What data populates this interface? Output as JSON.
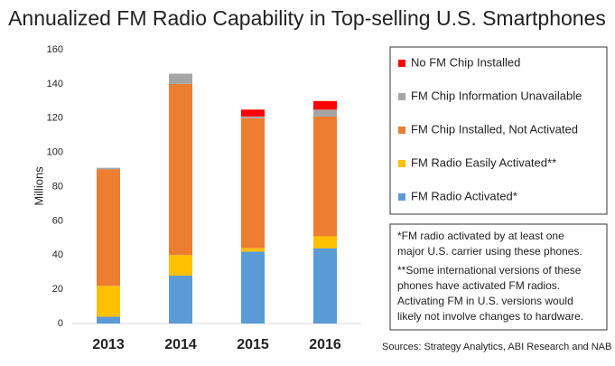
{
  "chart_data": {
    "type": "stacked_bar",
    "title": "Annualized FM Radio Capability in Top-selling U.S. Smartphones",
    "y_label": "Millions",
    "categories": [
      "2013",
      "2014",
      "2015",
      "2016"
    ],
    "series": [
      {
        "name": "FM Radio Activated*",
        "color": "#5b9bd5",
        "values": [
          4,
          28,
          42,
          44
        ]
      },
      {
        "name": "FM Radio Easily Activated**",
        "color": "#ffc000",
        "values": [
          18,
          12,
          2,
          7
        ]
      },
      {
        "name": "FM Chip Installed, Not Activated",
        "color": "#ed7d31",
        "values": [
          68,
          100,
          76,
          70
        ]
      },
      {
        "name": "FM Chip Information Unavailable",
        "color": "#a5a5a5",
        "values": [
          1,
          6,
          1,
          4
        ]
      },
      {
        "name": "No FM Chip Installed",
        "color": "#ff0000",
        "values": [
          0,
          0,
          4,
          5
        ]
      }
    ],
    "ylim": [
      0,
      160
    ],
    "yticks": [
      0,
      20,
      40,
      60,
      80,
      100,
      120,
      140,
      160
    ],
    "grid": false,
    "notes": [
      "*FM radio activated by at least one",
      "major U.S. carrier using these phones.",
      "**Some international versions of these",
      "phones have activated FM radios.",
      "Activating FM in U.S. versions would",
      "likely not involve changes to hardware."
    ],
    "source": "Sources: Strategy Analytics, ABI Research and NAB PILOT"
  }
}
